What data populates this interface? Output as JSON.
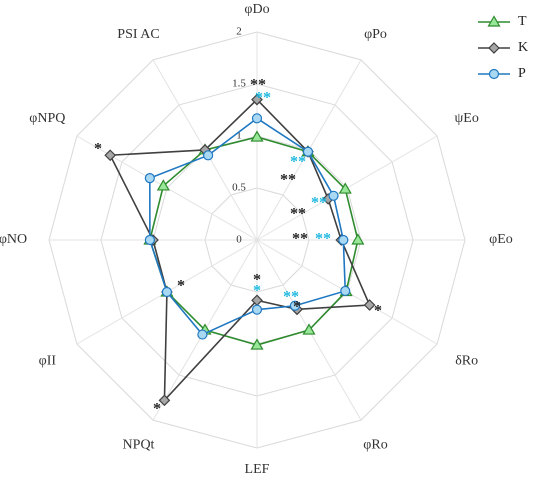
{
  "chart_data": {
    "type": "radar",
    "categories": [
      "φDo",
      "φPo",
      "ψEo",
      "φEo",
      "δRo",
      "φRo",
      "LEF",
      "NPQt",
      "φII",
      "φNO",
      "φNPQ",
      "PSI AC"
    ],
    "ylim": [
      0,
      2
    ],
    "yticks": [
      0,
      0.5,
      1,
      1.5,
      2
    ],
    "grid": true,
    "legend": "upper right",
    "series": [
      {
        "name": "T",
        "color": "#2e8b2e",
        "marker": "triangle",
        "marker_fill": "#98e698",
        "values": [
          0.99,
          0.98,
          0.98,
          0.97,
          0.99,
          1.0,
          1.01,
          1.0,
          1.0,
          1.03,
          1.04,
          1.0
        ]
      },
      {
        "name": "K",
        "color": "#404040",
        "marker": "diamond",
        "marker_fill": "#a6a6a6",
        "values": [
          1.35,
          0.98,
          0.79,
          0.81,
          1.25,
          0.77,
          0.58,
          1.78,
          1.0,
          1.0,
          1.63,
          1.0
        ]
      },
      {
        "name": "P",
        "color": "#1f78c1",
        "marker": "circle",
        "marker_fill": "#a9d8f2",
        "values": [
          1.17,
          0.98,
          0.85,
          0.83,
          0.98,
          0.73,
          0.67,
          1.05,
          1.0,
          1.03,
          1.19,
          0.94
        ]
      }
    ],
    "annotations": [
      {
        "text": "**",
        "color": "#222222"
      },
      {
        "text": "**",
        "color": "#1fb8e0"
      },
      {
        "text": "**",
        "color": "#1fb8e0"
      },
      {
        "text": "**",
        "color": "#222222"
      },
      {
        "text": "**",
        "color": "#1fb8e0"
      },
      {
        "text": "**",
        "color": "#222222"
      },
      {
        "text": "**",
        "color": "#1fb8e0"
      },
      {
        "text": "**",
        "color": "#222222"
      },
      {
        "text": "*",
        "color": "#222222"
      },
      {
        "text": "**",
        "color": "#1fb8e0"
      },
      {
        "text": "*",
        "color": "#222222"
      },
      {
        "text": "*",
        "color": "#222222"
      },
      {
        "text": "*",
        "color": "#1fb8e0"
      },
      {
        "text": "*",
        "color": "#222222"
      },
      {
        "text": "*",
        "color": "#222222"
      },
      {
        "text": "*",
        "color": "#222222"
      }
    ]
  }
}
